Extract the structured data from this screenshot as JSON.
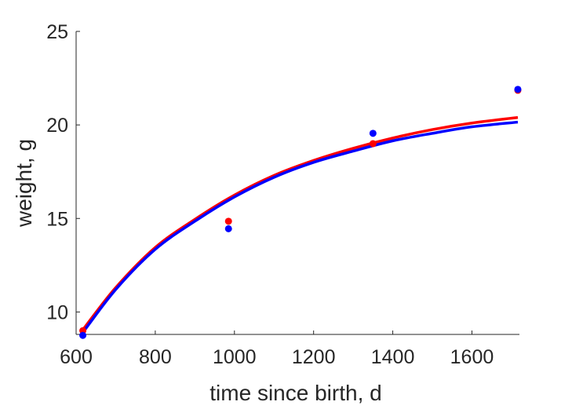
{
  "chart_data": {
    "type": "scatter",
    "title": "",
    "xlabel": "time since birth, d",
    "ylabel": "weight, g",
    "xlim": [
      600,
      1720
    ],
    "ylim": [
      8.8,
      25
    ],
    "xticks": [
      600,
      800,
      1000,
      1200,
      1400,
      1600
    ],
    "yticks": [
      10,
      15,
      20,
      25
    ],
    "grid": false,
    "legend": "none",
    "series": [
      {
        "color": "#ff0000",
        "points": {
          "x": [
            617,
            985,
            1350,
            1716
          ],
          "y": [
            9.0,
            14.85,
            19.0,
            21.85
          ]
        },
        "curve": {
          "x": [
            617,
            700,
            800,
            900,
            1000,
            1100,
            1200,
            1300,
            1400,
            1500,
            1600,
            1716
          ],
          "y": [
            9.05,
            11.3,
            13.45,
            14.95,
            16.25,
            17.3,
            18.1,
            18.75,
            19.3,
            19.75,
            20.1,
            20.4
          ]
        }
      },
      {
        "color": "#0000ff",
        "points": {
          "x": [
            617,
            985,
            1350,
            1716
          ],
          "y": [
            8.75,
            14.45,
            19.55,
            21.9
          ]
        },
        "curve": {
          "x": [
            617,
            700,
            800,
            900,
            1000,
            1100,
            1200,
            1300,
            1400,
            1500,
            1600,
            1716
          ],
          "y": [
            8.9,
            11.2,
            13.35,
            14.85,
            16.15,
            17.2,
            18.0,
            18.6,
            19.15,
            19.55,
            19.9,
            20.15
          ]
        }
      }
    ]
  }
}
